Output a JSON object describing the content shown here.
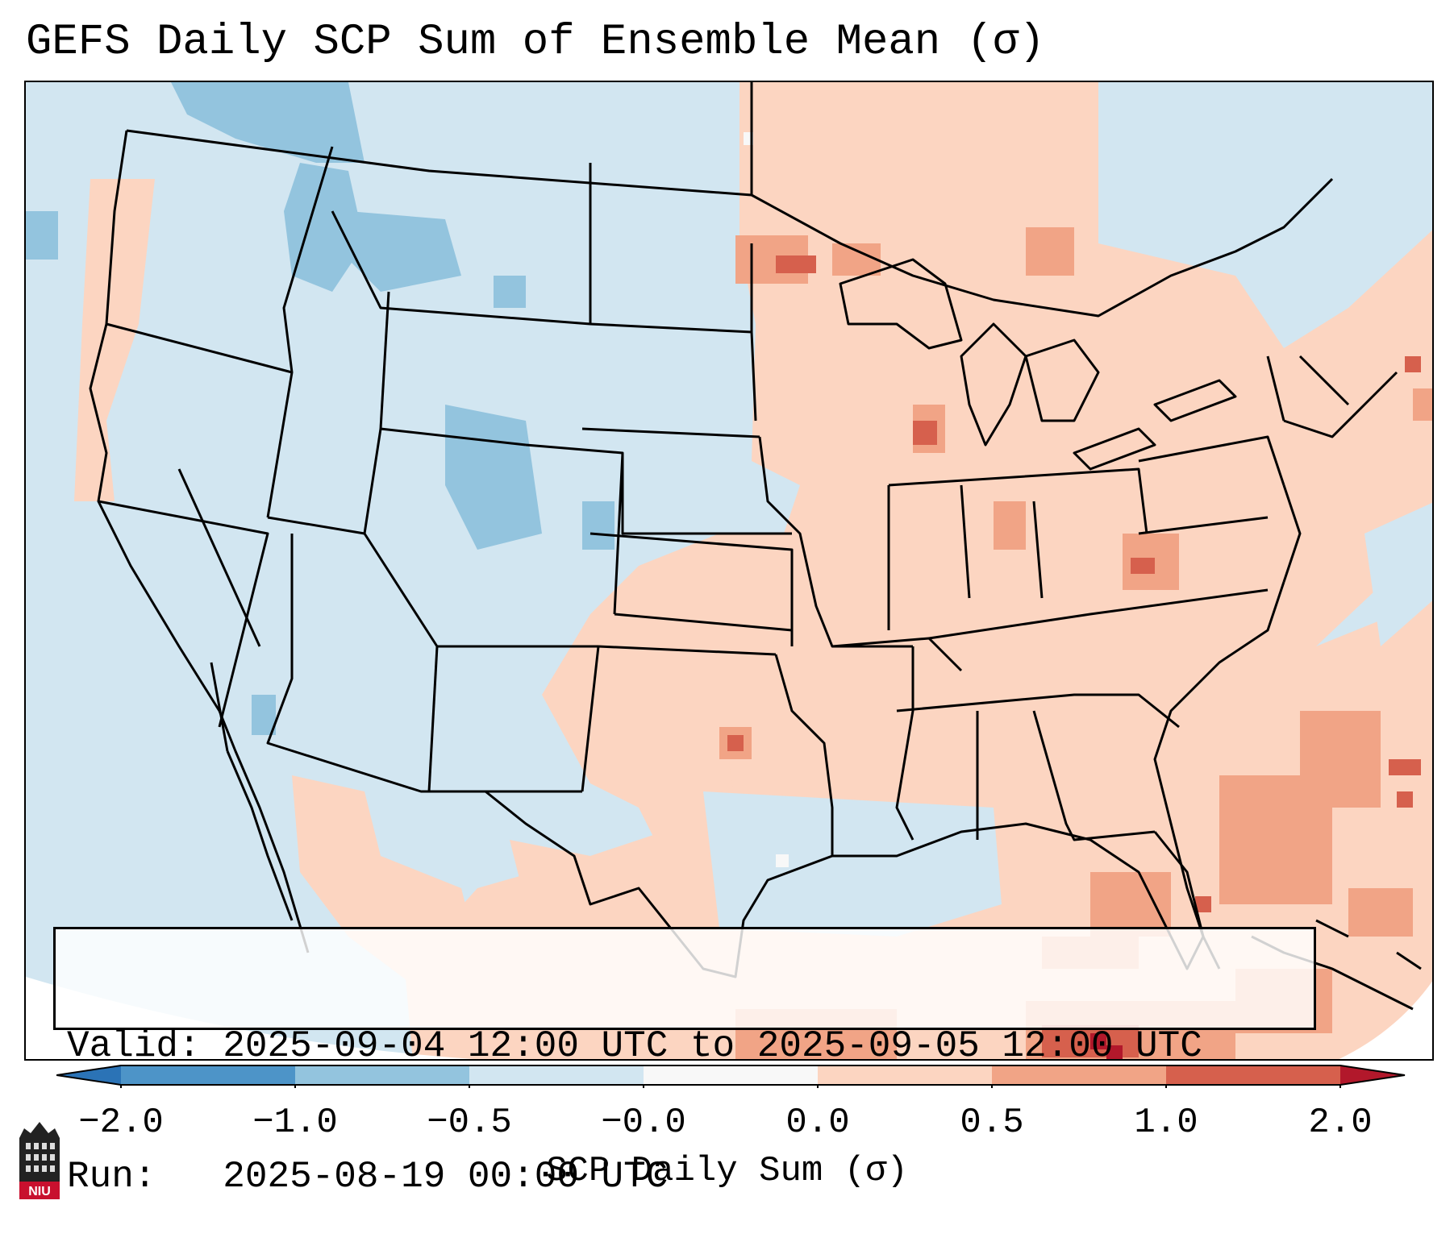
{
  "title": "GEFS Daily SCP Sum of Ensemble Mean (σ)",
  "info": {
    "valid_label": "Valid:",
    "valid_value": "2025-09-04 12:00 UTC to 2025-09-05 12:00 UTC",
    "run_label": "Run:",
    "run_value": "2025-08-19 00:00 UTC"
  },
  "colorbar": {
    "label": "SCP Daily Sum (σ)",
    "ticks": [
      "−2.0",
      "−1.0",
      "−0.5",
      "−0.0",
      "0.0",
      "0.5",
      "1.0",
      "2.0"
    ],
    "bins": [
      {
        "range": "<-2.0",
        "color": "#2b73b6"
      },
      {
        "range": "-2.0 to -1.0",
        "color": "#4d94c8"
      },
      {
        "range": "-1.0 to -0.5",
        "color": "#93c4de"
      },
      {
        "range": "-0.5 to -0.0",
        "color": "#d2e6f1"
      },
      {
        "range": "-0.0 to 0.0",
        "color": "#f8f8f8"
      },
      {
        "range": "0.0 to 0.5",
        "color": "#fcd5c1"
      },
      {
        "range": "0.5 to 1.0",
        "color": "#f1a486"
      },
      {
        "range": "1.0 to 2.0",
        "color": "#d6604d"
      },
      {
        "range": ">2.0",
        "color": "#b2182b"
      }
    ]
  },
  "logo": {
    "text": "NIU"
  },
  "colors": {
    "neg_strong": "#93c4de",
    "neg_weak": "#d2e6f1",
    "pos_weak": "#fcd5c1",
    "pos_mid": "#f1a486",
    "pos_strong": "#d6604d",
    "pos_max": "#b2182b"
  }
}
